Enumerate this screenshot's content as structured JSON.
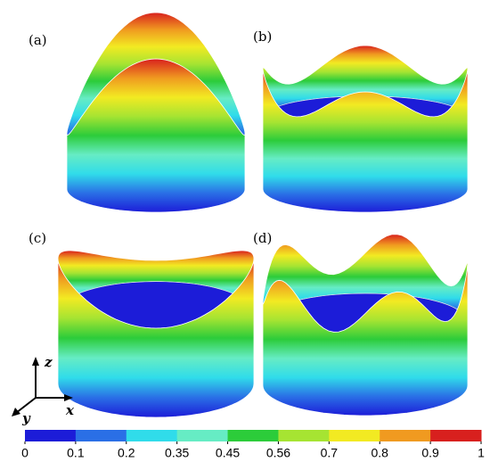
{
  "panels": [
    "(a)",
    "(b)",
    "(c)",
    "(d)"
  ],
  "axes": {
    "z": "z",
    "x": "x",
    "y": "y"
  },
  "colorbar": {
    "ticks": [
      0,
      0.1,
      0.2,
      0.35,
      0.45,
      0.56,
      0.7,
      0.8,
      0.9,
      1
    ],
    "colors": [
      "#1c1cd8",
      "#2a6fe6",
      "#30dcea",
      "#66ecc4",
      "#2ccc3a",
      "#a6e432",
      "#f2ea22",
      "#f09a20",
      "#d8201e"
    ]
  }
}
